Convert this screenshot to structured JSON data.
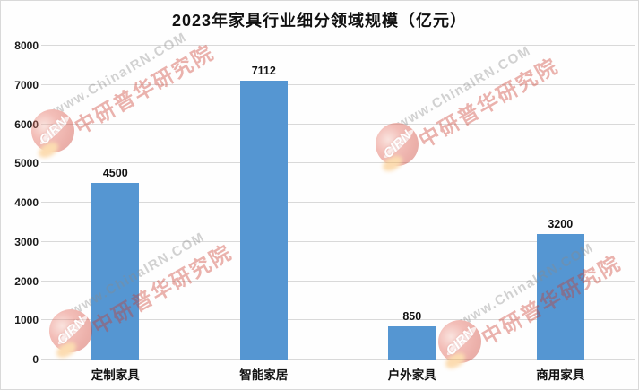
{
  "chart_data": {
    "type": "bar",
    "title": "2023年家具行业细分领域规模（亿元）",
    "categories": [
      "定制家具",
      "智能家居",
      "户外家具",
      "商用家具"
    ],
    "values": [
      4500,
      7112,
      850,
      3200
    ],
    "xlabel": "",
    "ylabel": "",
    "ylim": [
      0,
      8000
    ],
    "ytick_step": 1000,
    "grid": true,
    "legend": false,
    "bar_color": "#5596d2",
    "gridline_color": "#d9d9d9"
  },
  "watermark": {
    "logo_text": "CIRN",
    "url_text": "www.ChinaIRN.COM",
    "brand_text": "中研普华研究院",
    "brand_color": "#cc3a2c"
  }
}
